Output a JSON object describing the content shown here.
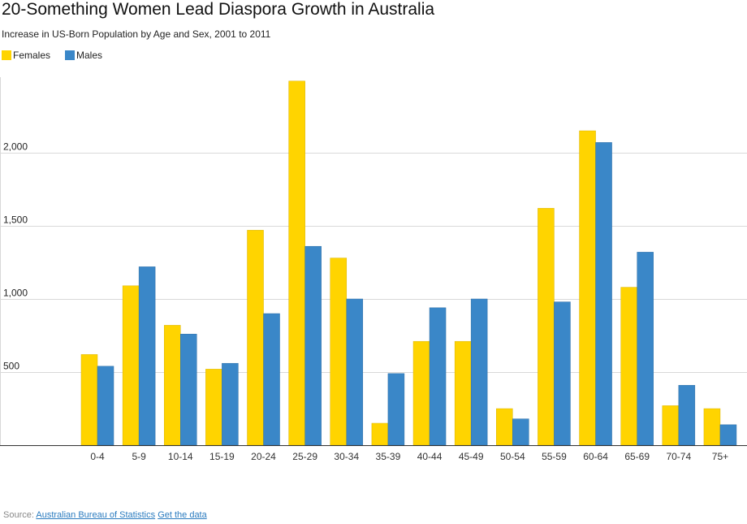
{
  "chart_data": {
    "type": "bar",
    "title": "20-Something Women Lead Diaspora Growth in Australia",
    "subtitle": "Increase in US-Born Population by Age and Sex, 2001 to 2011",
    "categories": [
      "0-4",
      "5-9",
      "10-14",
      "15-19",
      "20-24",
      "25-29",
      "30-34",
      "35-39",
      "40-44",
      "45-49",
      "50-54",
      "55-59",
      "60-64",
      "65-69",
      "70-74",
      "75+"
    ],
    "series": [
      {
        "name": "Females",
        "color": "#ffd400",
        "values": [
          620,
          1090,
          820,
          520,
          1470,
          2490,
          1280,
          150,
          710,
          710,
          250,
          1620,
          2150,
          1080,
          270,
          250
        ]
      },
      {
        "name": "Males",
        "color": "#3a87c8",
        "values": [
          540,
          1220,
          760,
          560,
          900,
          1360,
          1000,
          490,
          940,
          1000,
          180,
          980,
          2070,
          1320,
          410,
          140
        ]
      }
    ],
    "ylim": [
      0,
      2500
    ],
    "yticks": [
      500,
      1000,
      1500,
      2000
    ],
    "ytick_labels": [
      "500",
      "1,000",
      "1,500",
      "2,000"
    ],
    "grid": true,
    "legend": "top-left"
  },
  "source": {
    "label": "Source:",
    "link_text": "Australian Bureau of Statistics",
    "data_link_text": "Get the data"
  }
}
